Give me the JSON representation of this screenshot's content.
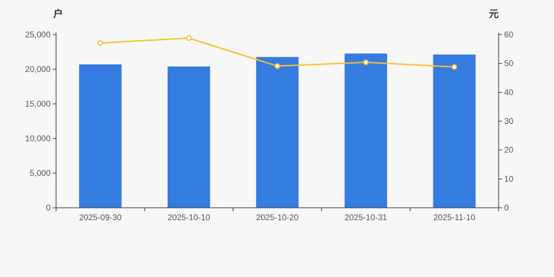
{
  "chart_data": {
    "type": "bar",
    "subtype": "bar-and-line-dual-axis",
    "title": "",
    "categories": [
      "2025-09-30",
      "2025-10-10",
      "2025-10-20",
      "2025-10-31",
      "2025-11-10"
    ],
    "series": [
      {
        "name": "households-bars",
        "type": "bar",
        "axis": "left",
        "values": [
          20700,
          20400,
          21770,
          22270,
          22130
        ]
      },
      {
        "name": "price-line",
        "type": "line",
        "axis": "right",
        "values": [
          57.1,
          58.8,
          49.1,
          50.4,
          48.8
        ]
      }
    ],
    "left_axis": {
      "name": "户",
      "min": 0,
      "max": 25000,
      "tick_interval": 5000,
      "tick_labels": [
        "0",
        "5,000",
        "10,000",
        "15,000",
        "20,000",
        "25,000"
      ]
    },
    "right_axis": {
      "name": "元",
      "min": 0,
      "max": 60,
      "tick_interval": 10,
      "tick_labels": [
        "0",
        "10",
        "20",
        "30",
        "40",
        "50",
        "60"
      ]
    },
    "grid": false,
    "legend": false,
    "colors": {
      "bar": "#357CE1",
      "line": "#F9C02A",
      "marker_fill": "#FFFFFF",
      "background": "#F7F7F7",
      "axis_line": "#333333",
      "tick_label": "#555555",
      "axis_name": "#333333"
    }
  }
}
